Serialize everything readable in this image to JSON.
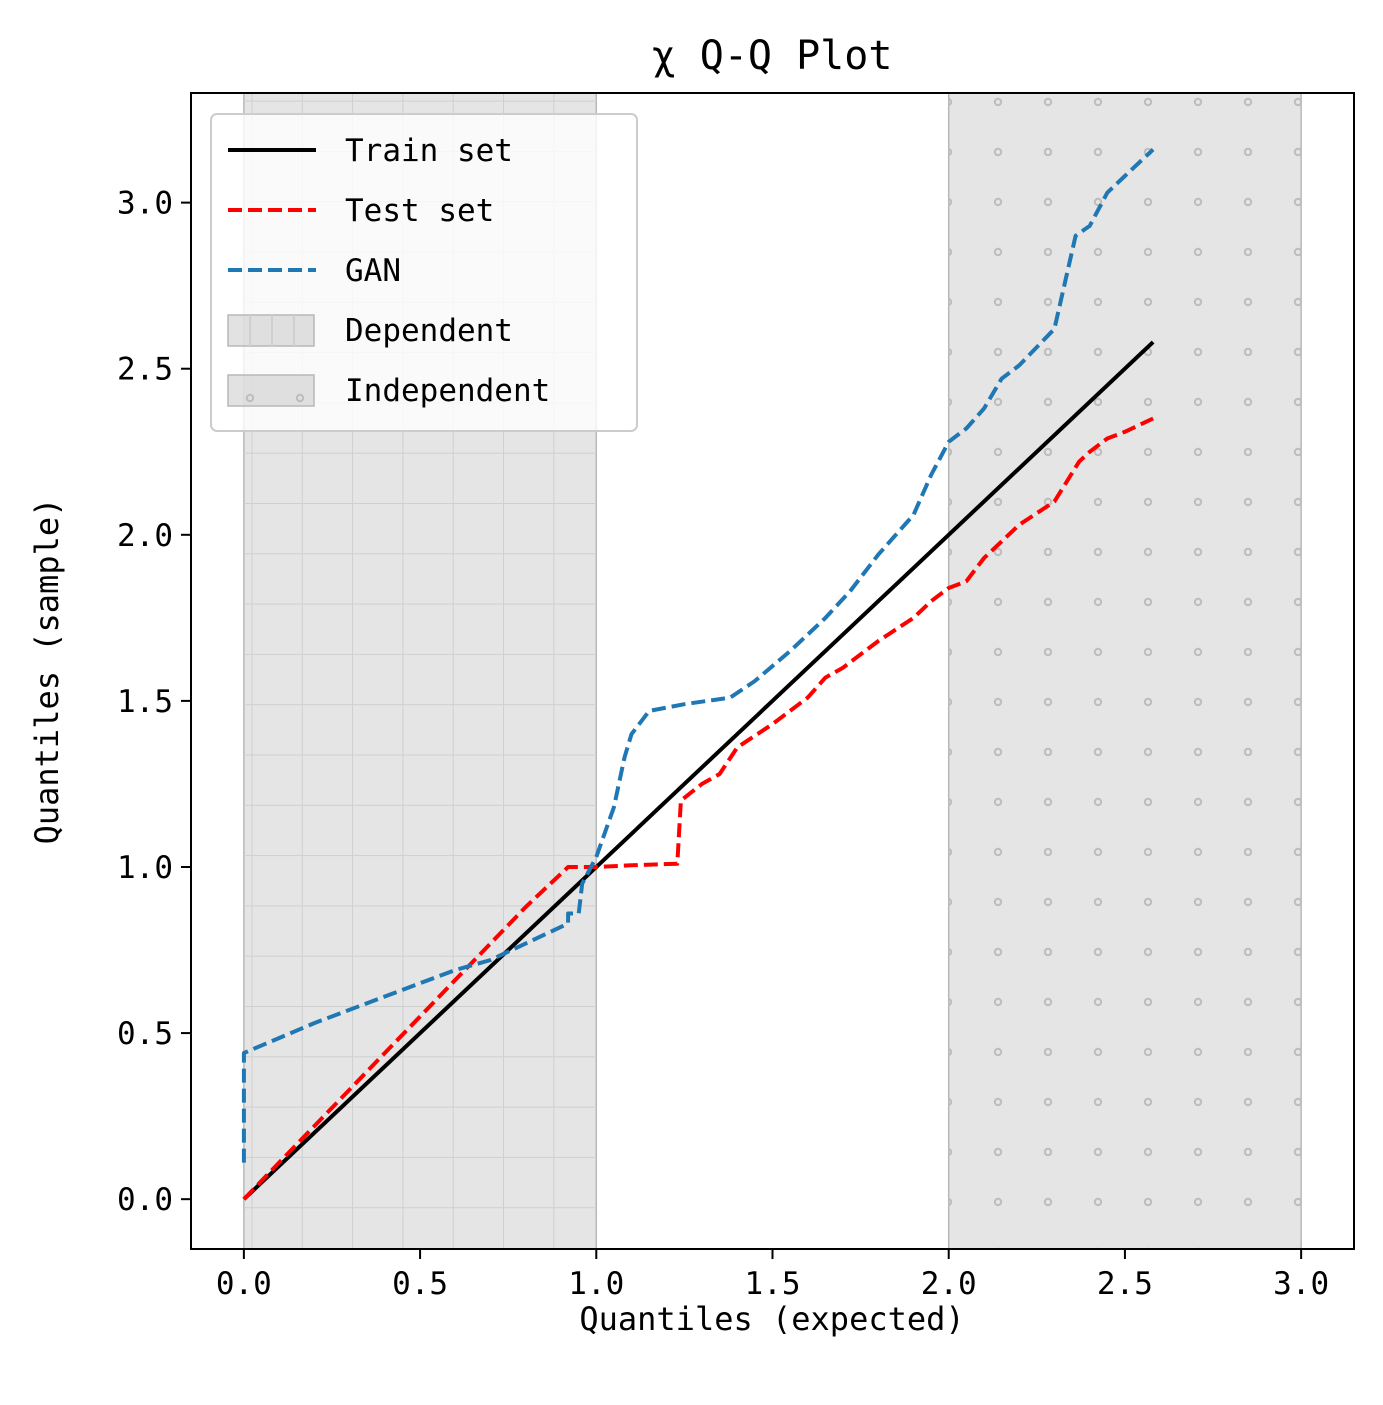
{
  "chart_data": {
    "type": "line",
    "title": "χ Q-Q Plot",
    "xlabel": "Quantiles (expected)",
    "ylabel": "Quantiles (sample)",
    "xlim": [
      -0.15,
      3.15
    ],
    "ylim": [
      -0.15,
      3.33
    ],
    "xticks": [
      "0.0",
      "0.5",
      "1.0",
      "1.5",
      "2.0",
      "2.5",
      "3.0"
    ],
    "yticks": [
      "0.0",
      "0.5",
      "1.0",
      "1.5",
      "2.0",
      "2.5",
      "3.0"
    ],
    "grid": false,
    "legend_position": "top-left",
    "regions": [
      {
        "name": "Dependent",
        "x0": 0.0,
        "x1": 1.0,
        "pattern": "grid",
        "color": "#bfbfbf"
      },
      {
        "name": "Independent",
        "x0": 2.0,
        "x1": 3.0,
        "pattern": "dots",
        "color": "#bfbfbf"
      }
    ],
    "series": [
      {
        "name": "Train set",
        "color": "#000000",
        "style": "solid",
        "points": [
          [
            0.0,
            0.0
          ],
          [
            2.58,
            2.58
          ]
        ]
      },
      {
        "name": "Test set",
        "color": "#ff0000",
        "style": "dashed",
        "points": [
          [
            0.0,
            0.0
          ],
          [
            0.1,
            0.11
          ],
          [
            0.2,
            0.22
          ],
          [
            0.3,
            0.33
          ],
          [
            0.4,
            0.44
          ],
          [
            0.5,
            0.55
          ],
          [
            0.6,
            0.66
          ],
          [
            0.7,
            0.77
          ],
          [
            0.8,
            0.88
          ],
          [
            0.92,
            1.0
          ],
          [
            1.0,
            1.0
          ],
          [
            1.1,
            1.005
          ],
          [
            1.23,
            1.01
          ],
          [
            1.24,
            1.2
          ],
          [
            1.3,
            1.25
          ],
          [
            1.35,
            1.28
          ],
          [
            1.4,
            1.36
          ],
          [
            1.5,
            1.43
          ],
          [
            1.6,
            1.51
          ],
          [
            1.65,
            1.57
          ],
          [
            1.7,
            1.6
          ],
          [
            1.8,
            1.68
          ],
          [
            1.9,
            1.75
          ],
          [
            1.95,
            1.8
          ],
          [
            2.0,
            1.84
          ],
          [
            2.05,
            1.86
          ],
          [
            2.1,
            1.93
          ],
          [
            2.2,
            2.03
          ],
          [
            2.3,
            2.1
          ],
          [
            2.37,
            2.22
          ],
          [
            2.4,
            2.25
          ],
          [
            2.45,
            2.29
          ],
          [
            2.5,
            2.31
          ],
          [
            2.58,
            2.35
          ]
        ]
      },
      {
        "name": "GAN",
        "color": "#1f77b4",
        "style": "dashed",
        "points": [
          [
            0.0,
            0.11
          ],
          [
            0.0,
            0.44
          ],
          [
            0.2,
            0.53
          ],
          [
            0.4,
            0.61
          ],
          [
            0.6,
            0.69
          ],
          [
            0.7,
            0.72
          ],
          [
            0.8,
            0.77
          ],
          [
            0.92,
            0.83
          ],
          [
            0.92,
            0.86
          ],
          [
            0.95,
            0.86
          ],
          [
            0.96,
            0.95
          ],
          [
            1.0,
            1.03
          ],
          [
            1.05,
            1.18
          ],
          [
            1.08,
            1.33
          ],
          [
            1.1,
            1.4
          ],
          [
            1.15,
            1.47
          ],
          [
            1.25,
            1.49
          ],
          [
            1.38,
            1.51
          ],
          [
            1.45,
            1.56
          ],
          [
            1.55,
            1.65
          ],
          [
            1.65,
            1.75
          ],
          [
            1.72,
            1.83
          ],
          [
            1.8,
            1.94
          ],
          [
            1.9,
            2.06
          ],
          [
            1.95,
            2.18
          ],
          [
            2.0,
            2.28
          ],
          [
            2.05,
            2.32
          ],
          [
            2.1,
            2.38
          ],
          [
            2.15,
            2.47
          ],
          [
            2.2,
            2.51
          ],
          [
            2.3,
            2.62
          ],
          [
            2.36,
            2.9
          ],
          [
            2.4,
            2.93
          ],
          [
            2.45,
            3.03
          ],
          [
            2.5,
            3.08
          ],
          [
            2.58,
            3.16
          ]
        ]
      }
    ]
  }
}
